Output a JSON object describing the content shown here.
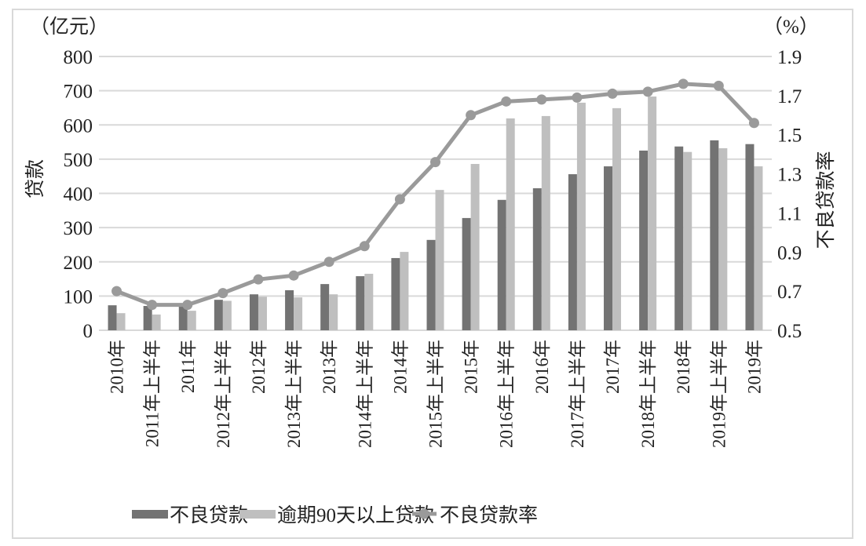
{
  "chart_data": {
    "type": "bar+line",
    "title": "",
    "categories": [
      "2010年",
      "2011年上半年",
      "2011年",
      "2012年上半年",
      "2012年",
      "2013年上半年",
      "2013年",
      "2014年上半年",
      "2014年",
      "2015年上半年",
      "2015年",
      "2016年上半年",
      "2016年",
      "2017年上半年",
      "2017年",
      "2018年上半年",
      "2018年",
      "2019年上半年",
      "2019年"
    ],
    "series": [
      {
        "name": "不良贷款",
        "type": "bar",
        "axis": "left",
        "color": "#737373",
        "values": [
          73,
          71,
          71,
          89,
          105,
          117,
          135,
          158,
          211,
          264,
          328,
          381,
          415,
          456,
          479,
          525,
          537,
          555,
          544
        ]
      },
      {
        "name": "逾期90天以上贷款",
        "type": "bar",
        "axis": "left",
        "color": "#bfbfbf",
        "values": [
          50,
          46,
          57,
          86,
          98,
          96,
          105,
          165,
          229,
          410,
          486,
          619,
          626,
          665,
          649,
          683,
          521,
          532,
          479
        ]
      },
      {
        "name": "不良贷款率",
        "type": "line",
        "axis": "right",
        "color": "#9a9a9a",
        "values": [
          0.7,
          0.63,
          0.63,
          0.69,
          0.76,
          0.78,
          0.85,
          0.93,
          1.17,
          1.36,
          1.6,
          1.67,
          1.68,
          1.69,
          1.71,
          1.72,
          1.76,
          1.75,
          1.56
        ]
      }
    ],
    "ylabel": "贷款",
    "ylabel_unit": "（亿元）",
    "ylim": [
      0,
      800
    ],
    "yticks": [
      "0",
      "100",
      "200",
      "300",
      "400",
      "500",
      "600",
      "700",
      "800"
    ],
    "y2label": "不良贷款率",
    "y2label_unit": "（%）",
    "y2lim": [
      0.5,
      1.9
    ],
    "y2ticks": [
      "0.5",
      "0.7",
      "0.9",
      "1.1",
      "1.3",
      "1.5",
      "1.7",
      "1.9"
    ],
    "grid": true,
    "legend_position": "bottom"
  },
  "colors": {
    "grid": "#d9d9d9",
    "frame": "#d9d9d9",
    "bar_dark": "#737373",
    "bar_light": "#bfbfbf",
    "line": "#9a9a9a"
  }
}
